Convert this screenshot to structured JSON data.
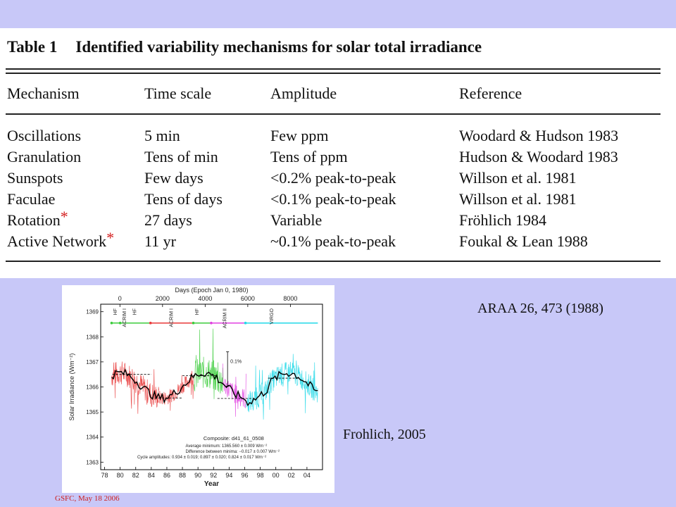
{
  "table": {
    "number": "Table 1",
    "title": "Identified variability mechanisms for solar total irradiance",
    "headers": [
      "Mechanism",
      "Time scale",
      "Amplitude",
      "Reference"
    ],
    "rows": [
      {
        "mechanism": "Oscillations",
        "timescale": "5 min",
        "amplitude": "Few ppm",
        "reference": "Woodard & Hudson 1983",
        "star": ""
      },
      {
        "mechanism": "Granulation",
        "timescale": "Tens of min",
        "amplitude": "Tens of ppm",
        "reference": "Hudson & Woodard 1983",
        "star": ""
      },
      {
        "mechanism": "Sunspots",
        "timescale": "Few days",
        "amplitude": "<0.2% peak-to-peak",
        "reference": "Willson et al. 1981",
        "star": ""
      },
      {
        "mechanism": "Faculae",
        "timescale": "Tens of days",
        "amplitude": "<0.1% peak-to-peak",
        "reference": "Willson et al. 1981",
        "star": ""
      },
      {
        "mechanism": "Rotation",
        "timescale": "27 days",
        "amplitude": "Variable",
        "reference": "Fröhlich 1984",
        "star": "*"
      },
      {
        "mechanism": "Active Network",
        "timescale": "11 yr",
        "amplitude": "~0.1% peak-to-peak",
        "reference": "Foukal & Lean 1988",
        "star": "*"
      }
    ]
  },
  "citation": "ARAA 26, 473 (1988)",
  "figure_credit": "Frohlich, 2005",
  "footer": "GSFC, May 18 2006",
  "figure": {
    "top_axis_label": "Days (Epoch Jan 0, 1980)",
    "top_ticks": [
      "0",
      "2000",
      "4000",
      "6000",
      "8000"
    ],
    "y_label": "Solar Irradiance (Wm⁻²)",
    "y_ticks": [
      "1363",
      "1364",
      "1365",
      "1366",
      "1367",
      "1368",
      "1369"
    ],
    "x_label": "Year",
    "x_ticks": [
      "78",
      "80",
      "82",
      "84",
      "86",
      "88",
      "90",
      "92",
      "94",
      "96",
      "98",
      "00",
      "02",
      "04"
    ],
    "instruments": [
      "HF",
      "ACRIM I",
      "HF",
      "ACRIM I",
      "HF",
      "ACRIM II",
      "VIRGO"
    ],
    "scale_bar_label": "0.1%",
    "composite_title": "Composite: d41_61_0508",
    "stats": [
      "Average minimum: 1365.560 ± 0.009 Wm⁻²",
      "Difference between minima: −0.017 ± 0.007 Wm⁻²",
      "Cycle amplitudes: 0.934 ± 0.019; 0.897 ± 0.020; 0.824 ± 0.017 Wm⁻²"
    ],
    "colors": {
      "red": "#e83a3a",
      "green": "#3ccc3c",
      "magenta": "#e040e0",
      "cyan": "#22d8e8",
      "black": "#000000"
    }
  }
}
